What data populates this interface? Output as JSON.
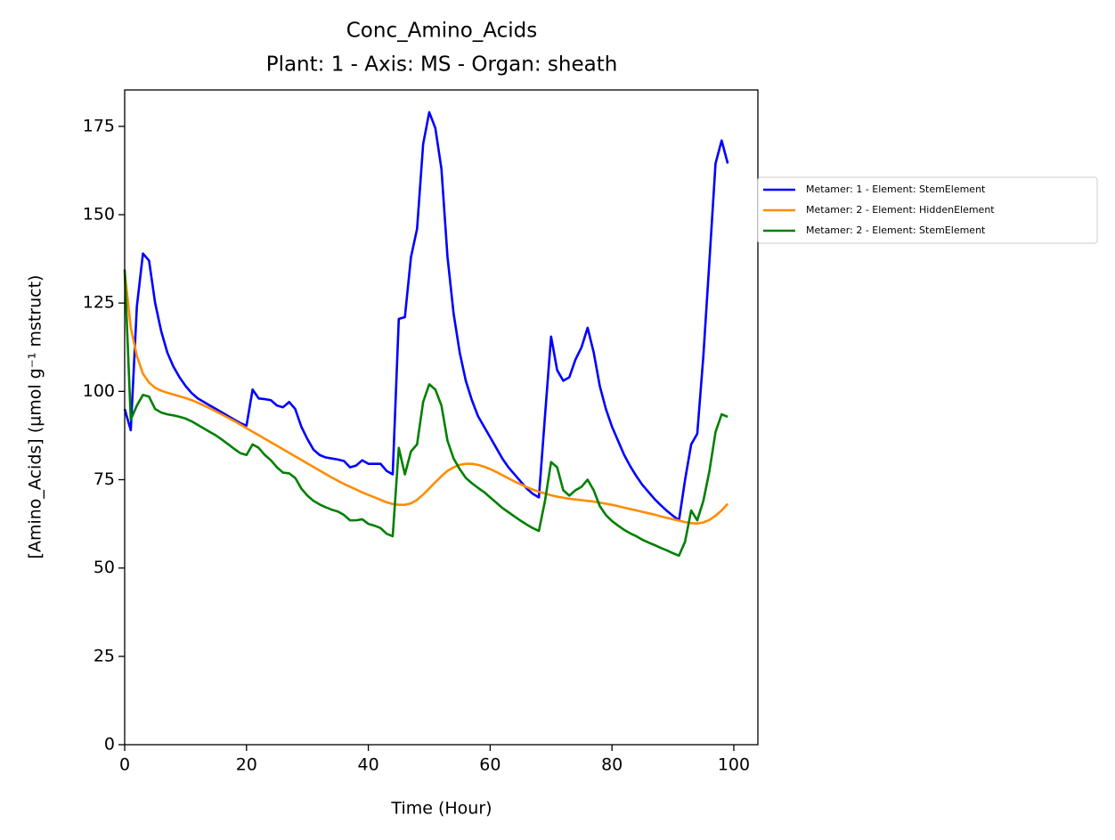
{
  "chart_data": {
    "type": "line",
    "title": "Conc_Amino_Acids",
    "subtitle": "Plant: 1 - Axis: MS - Organ: sheath",
    "x_label": "Time (Hour)",
    "y_label": "[Amino_Acids] (µmol g⁻¹ mstruct)",
    "x": [
      0,
      1,
      2,
      3,
      4,
      5,
      6,
      7,
      8,
      9,
      10,
      11,
      12,
      13,
      14,
      15,
      16,
      17,
      18,
      19,
      20,
      21,
      22,
      23,
      24,
      25,
      26,
      27,
      28,
      29,
      30,
      31,
      32,
      33,
      34,
      35,
      36,
      37,
      38,
      39,
      40,
      41,
      42,
      43,
      44,
      45,
      46,
      47,
      48,
      49,
      50,
      51,
      52,
      53,
      54,
      55,
      56,
      57,
      58,
      59,
      60,
      61,
      62,
      63,
      64,
      65,
      66,
      67,
      68,
      69,
      70,
      71,
      72,
      73,
      74,
      75,
      76,
      77,
      78,
      79,
      80,
      81,
      82,
      83,
      84,
      85,
      86,
      87,
      88,
      89,
      90,
      91,
      92,
      93,
      94,
      95,
      96,
      97,
      98,
      99
    ],
    "series": [
      {
        "name": "Metamer: 1 - Element: StemElement",
        "color": "#0000ff",
        "values": [
          95,
          89,
          124,
          139,
          137,
          125,
          117,
          111,
          107,
          104,
          101.5,
          99.5,
          98,
          97,
          96,
          95,
          94,
          93,
          92,
          91,
          90.3,
          100.5,
          98,
          97.8,
          97.5,
          96,
          95.5,
          97,
          95,
          90,
          86.5,
          83.5,
          82,
          81.3,
          81,
          80.7,
          80.3,
          78.5,
          79,
          80.5,
          79.5,
          79.5,
          79.5,
          77.5,
          76.5,
          120.5,
          121,
          138,
          146,
          170,
          179,
          174.5,
          163,
          138,
          122,
          111,
          103,
          97.5,
          93,
          90,
          87,
          84,
          81,
          78.5,
          76.5,
          74.5,
          72.5,
          71,
          70,
          93,
          115.5,
          106,
          103,
          104,
          109,
          112.5,
          118,
          111,
          101.5,
          95,
          90,
          86,
          82,
          78.8,
          76,
          73.5,
          71.5,
          69.5,
          67.8,
          66.2,
          64.8,
          63.5,
          75,
          85,
          88,
          110,
          137,
          164.5,
          171,
          164.5
        ]
      },
      {
        "name": "Metamer: 2 - Element: HiddenElement",
        "color": "#ff8c00",
        "values": [
          134,
          118,
          110,
          105,
          102.5,
          101,
          100.2,
          99.6,
          99.1,
          98.6,
          98.1,
          97.5,
          96.8,
          96,
          95.2,
          94.3,
          93.4,
          92.5,
          91.6,
          90.6,
          89.6,
          88.6,
          87.6,
          86.6,
          85.6,
          84.6,
          83.6,
          82.6,
          81.6,
          80.6,
          79.6,
          78.6,
          77.6,
          76.6,
          75.6,
          74.7,
          73.8,
          73,
          72.2,
          71.4,
          70.7,
          70,
          69.3,
          68.6,
          68.1,
          67.9,
          67.9,
          68.3,
          69.3,
          70.8,
          72.5,
          74.3,
          76,
          77.5,
          78.5,
          79.2,
          79.5,
          79.5,
          79.2,
          78.7,
          78,
          77.2,
          76.3,
          75.4,
          74.5,
          73.7,
          72.9,
          72.2,
          71.6,
          71.1,
          70.6,
          70.2,
          69.9,
          69.6,
          69.4,
          69.2,
          69,
          68.8,
          68.5,
          68.2,
          67.9,
          67.5,
          67.1,
          66.7,
          66.3,
          65.9,
          65.5,
          65.1,
          64.6,
          64.2,
          63.8,
          63.4,
          63,
          62.7,
          62.6,
          62.9,
          63.6,
          64.8,
          66.3,
          68.2
        ]
      },
      {
        "name": "Metamer: 2 - Element: StemElement",
        "color": "#008000",
        "values": [
          134.5,
          92,
          96,
          99,
          98.5,
          95,
          94,
          93.5,
          93.2,
          92.8,
          92.3,
          91.5,
          90.5,
          89.5,
          88.5,
          87.5,
          86.3,
          85,
          83.7,
          82.5,
          82,
          85,
          84,
          82,
          80.5,
          78.5,
          77,
          76.8,
          75.5,
          72.5,
          70.5,
          69,
          68,
          67.2,
          66.5,
          66,
          65,
          63.5,
          63.5,
          63.8,
          62.5,
          62,
          61.3,
          59.7,
          59,
          84,
          76.5,
          83,
          85,
          97,
          102,
          100.5,
          96,
          86,
          81,
          78,
          75.5,
          74,
          72.7,
          71.5,
          70,
          68.5,
          67,
          65.8,
          64.6,
          63.4,
          62.3,
          61.3,
          60.5,
          69,
          80,
          78.5,
          72,
          70.5,
          72,
          73,
          75,
          72,
          67.5,
          65,
          63.3,
          62,
          60.8,
          59.8,
          59,
          58,
          57.2,
          56.5,
          55.7,
          55,
          54.2,
          53.5,
          57.5,
          66.3,
          63.5,
          69,
          77.5,
          88.5,
          93.5,
          92.8
        ]
      }
    ],
    "xlim": [
      0,
      103.95
    ],
    "ylim": [
      0,
      185.3
    ],
    "xticks": [
      0,
      20,
      40,
      60,
      80,
      100
    ],
    "yticks": [
      0,
      25,
      50,
      75,
      100,
      125,
      150,
      175
    ],
    "grid": false,
    "legend": "outside right"
  }
}
